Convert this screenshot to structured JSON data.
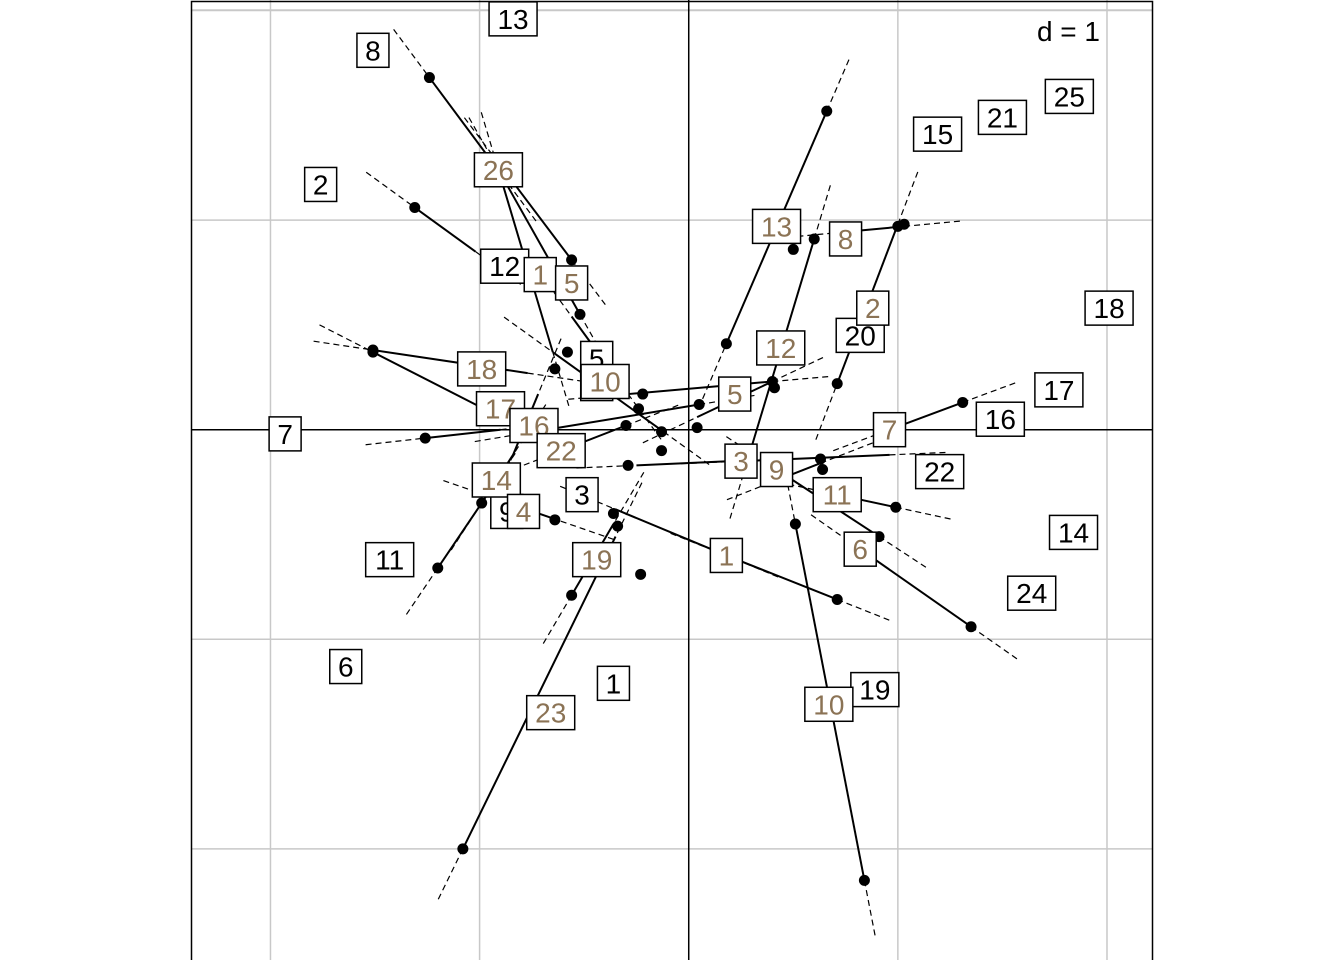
{
  "chart_data": {
    "type": "scatter",
    "title": "",
    "scale_label": "d = 1",
    "xlim": [
      -2.38,
      2.22
    ],
    "ylim": [
      -2.53,
      2.05
    ],
    "grid_step": 1,
    "grid": true,
    "colors": {
      "black_labels": "#000000",
      "brown_labels": "#8b7355",
      "grid": "#c8c8c8",
      "segments": "#000000"
    },
    "black_labels": [
      {
        "label": "13",
        "x": -0.84,
        "y": 1.96
      },
      {
        "label": "8",
        "x": -1.51,
        "y": 1.81
      },
      {
        "label": "2",
        "x": -1.76,
        "y": 1.17
      },
      {
        "label": "12",
        "x": -0.88,
        "y": 0.78
      },
      {
        "label": "5",
        "x": -0.44,
        "y": 0.34
      },
      {
        "label": "4",
        "x": -0.44,
        "y": 0.22
      },
      {
        "label": "7",
        "x": -1.93,
        "y": -0.02
      },
      {
        "label": "3",
        "x": -0.51,
        "y": -0.31
      },
      {
        "label": "9",
        "x": -0.87,
        "y": -0.39
      },
      {
        "label": "11",
        "x": -1.43,
        "y": -0.62
      },
      {
        "label": "6",
        "x": -1.64,
        "y": -1.13
      },
      {
        "label": "1",
        "x": -0.36,
        "y": -1.21
      },
      {
        "label": "15",
        "x": 1.19,
        "y": 1.41
      },
      {
        "label": "21",
        "x": 1.5,
        "y": 1.49
      },
      {
        "label": "25",
        "x": 1.82,
        "y": 1.59
      },
      {
        "label": "18",
        "x": 2.01,
        "y": 0.58
      },
      {
        "label": "20",
        "x": 0.82,
        "y": 0.45
      },
      {
        "label": "17",
        "x": 1.77,
        "y": 0.19
      },
      {
        "label": "16",
        "x": 1.49,
        "y": 0.05
      },
      {
        "label": "22",
        "x": 1.2,
        "y": -0.2
      },
      {
        "label": "14",
        "x": 1.84,
        "y": -0.49
      },
      {
        "label": "24",
        "x": 1.64,
        "y": -0.78
      },
      {
        "label": "19",
        "x": 0.89,
        "y": -1.24
      }
    ],
    "brown_labels": [
      {
        "label": "26",
        "x": -0.91,
        "y": 1.24
      },
      {
        "label": "1",
        "x": -0.71,
        "y": 0.74
      },
      {
        "label": "5",
        "x": -0.56,
        "y": 0.7
      },
      {
        "label": "10",
        "x": -0.4,
        "y": 0.23
      },
      {
        "label": "18",
        "x": -0.99,
        "y": 0.29
      },
      {
        "label": "17",
        "x": -0.9,
        "y": 0.1
      },
      {
        "label": "16",
        "x": -0.74,
        "y": 0.02
      },
      {
        "label": "22",
        "x": -0.61,
        "y": -0.1
      },
      {
        "label": "14",
        "x": -0.92,
        "y": -0.24
      },
      {
        "label": "4",
        "x": -0.79,
        "y": -0.39
      },
      {
        "label": "19",
        "x": -0.44,
        "y": -0.62
      },
      {
        "label": "23",
        "x": -0.66,
        "y": -1.35
      },
      {
        "label": "13",
        "x": 0.42,
        "y": 0.97
      },
      {
        "label": "8",
        "x": 0.75,
        "y": 0.91
      },
      {
        "label": "2",
        "x": 0.88,
        "y": 0.58
      },
      {
        "label": "12",
        "x": 0.44,
        "y": 0.39
      },
      {
        "label": "5",
        "x": 0.22,
        "y": 0.17
      },
      {
        "label": "7",
        "x": 0.96,
        "y": 0.0
      },
      {
        "label": "3",
        "x": 0.25,
        "y": -0.15
      },
      {
        "label": "9",
        "x": 0.42,
        "y": -0.19
      },
      {
        "label": "11",
        "x": 0.71,
        "y": -0.31
      },
      {
        "label": "6",
        "x": 0.82,
        "y": -0.57
      },
      {
        "label": "1",
        "x": 0.18,
        "y": -0.6
      },
      {
        "label": "10",
        "x": 0.67,
        "y": -1.31
      }
    ],
    "segments": [
      {
        "from": [
          -1.24,
          1.68
        ],
        "to": [
          -0.89,
          1.21
        ]
      },
      {
        "from": [
          -1.31,
          1.06
        ],
        "to": [
          -1.02,
          0.85
        ]
      },
      {
        "from": [
          -1.51,
          0.38
        ],
        "to": [
          -0.77,
          0.27
        ]
      },
      {
        "from": [
          -1.51,
          0.37
        ],
        "to": [
          -0.96,
          0.09
        ]
      },
      {
        "from": [
          -1.26,
          -0.04
        ],
        "to": [
          -0.9,
          0.0
        ]
      },
      {
        "from": [
          -0.9,
          1.26
        ],
        "to": [
          -0.56,
          0.81
        ]
      },
      {
        "from": [
          -0.91,
          1.24
        ],
        "to": [
          -0.52,
          0.55
        ]
      },
      {
        "from": [
          -0.91,
          1.24
        ],
        "to": [
          -0.65,
          0.37
        ]
      },
      {
        "from": [
          -0.65,
          0.37
        ],
        "to": [
          -0.12,
          -0.01
        ]
      },
      {
        "from": [
          -0.56,
          0.54
        ],
        "to": [
          -0.29,
          0.17
        ]
      },
      {
        "from": [
          -0.72,
          0.17
        ],
        "to": [
          -0.84,
          -0.12
        ]
      },
      {
        "from": [
          -0.84,
          -0.12
        ],
        "to": [
          -0.99,
          -0.35
        ]
      },
      {
        "from": [
          -0.99,
          -0.35
        ],
        "to": [
          -1.2,
          -0.66
        ]
      },
      {
        "from": [
          -0.63,
          -0.43
        ],
        "to": [
          -0.92,
          -0.33
        ]
      },
      {
        "from": [
          -0.36,
          -0.45
        ],
        "to": [
          -0.56,
          -0.79
        ]
      },
      {
        "from": [
          -0.35,
          -0.51
        ],
        "to": [
          -1.08,
          -2.0
        ]
      },
      {
        "from": [
          -0.74,
          -0.01
        ],
        "to": [
          0.05,
          0.12
        ]
      },
      {
        "from": [
          -0.61,
          -0.1
        ],
        "to": [
          -0.3,
          0.02
        ]
      },
      {
        "from": [
          -0.29,
          0.17
        ],
        "to": [
          0.4,
          0.23
        ]
      },
      {
        "from": [
          -0.25,
          -0.17
        ],
        "to": [
          0.2,
          -0.15
        ]
      },
      {
        "from": [
          -0.35,
          -0.38
        ],
        "to": [
          0.18,
          -0.6
        ]
      },
      {
        "from": [
          0.18,
          -0.6
        ],
        "to": [
          0.71,
          -0.81
        ]
      },
      {
        "from": [
          0.18,
          0.41
        ],
        "to": [
          0.66,
          1.52
        ]
      },
      {
        "from": [
          0.28,
          -0.15
        ],
        "to": [
          0.6,
          0.91
        ]
      },
      {
        "from": [
          0.71,
          0.94
        ],
        "to": [
          1.03,
          0.97
        ]
      },
      {
        "from": [
          0.71,
          0.22
        ],
        "to": [
          1.0,
          0.98
        ]
      },
      {
        "from": [
          0.04,
          0.06
        ],
        "to": [
          0.4,
          0.23
        ]
      },
      {
        "from": [
          0.25,
          -0.15
        ],
        "to": [
          0.96,
          -0.12
        ]
      },
      {
        "from": [
          0.96,
          0.0
        ],
        "to": [
          1.31,
          0.13
        ]
      },
      {
        "from": [
          0.45,
          -0.23
        ],
        "to": [
          0.63,
          -0.16
        ]
      },
      {
        "from": [
          0.42,
          -0.19
        ],
        "to": [
          0.91,
          -0.51
        ]
      },
      {
        "from": [
          0.82,
          -0.57
        ],
        "to": [
          1.35,
          -0.94
        ]
      },
      {
        "from": [
          0.71,
          -0.31
        ],
        "to": [
          0.99,
          -0.37
        ]
      },
      {
        "from": [
          0.51,
          -0.45
        ],
        "to": [
          0.84,
          -2.15
        ]
      }
    ],
    "points": [
      {
        "x": -1.24,
        "y": 1.68
      },
      {
        "x": -1.31,
        "y": 1.06
      },
      {
        "x": -0.89,
        "y": 1.21
      },
      {
        "x": -0.56,
        "y": 0.81
      },
      {
        "x": -0.52,
        "y": 0.55
      },
      {
        "x": -0.58,
        "y": 0.37
      },
      {
        "x": -1.51,
        "y": 0.38
      },
      {
        "x": -1.51,
        "y": 0.37
      },
      {
        "x": -0.64,
        "y": 0.29
      },
      {
        "x": -0.22,
        "y": 0.17
      },
      {
        "x": -0.24,
        "y": 0.1
      },
      {
        "x": -1.26,
        "y": -0.04
      },
      {
        "x": -0.3,
        "y": 0.02
      },
      {
        "x": -0.13,
        "y": -0.01
      },
      {
        "x": -0.13,
        "y": -0.1
      },
      {
        "x": -0.29,
        "y": -0.17
      },
      {
        "x": -0.99,
        "y": -0.35
      },
      {
        "x": -1.2,
        "y": -0.66
      },
      {
        "x": -0.64,
        "y": -0.43
      },
      {
        "x": -0.36,
        "y": -0.4
      },
      {
        "x": -0.34,
        "y": -0.46
      },
      {
        "x": -0.56,
        "y": -0.79
      },
      {
        "x": -0.23,
        "y": -0.69
      },
      {
        "x": -1.08,
        "y": -2.0
      },
      {
        "x": 0.05,
        "y": 0.12
      },
      {
        "x": 0.04,
        "y": 0.01
      },
      {
        "x": 0.18,
        "y": 0.41
      },
      {
        "x": 0.66,
        "y": 1.52
      },
      {
        "x": 0.5,
        "y": 0.86
      },
      {
        "x": 0.6,
        "y": 0.91
      },
      {
        "x": 1.0,
        "y": 0.97
      },
      {
        "x": 1.03,
        "y": 0.98
      },
      {
        "x": 0.71,
        "y": 0.22
      },
      {
        "x": 0.4,
        "y": 0.23
      },
      {
        "x": 0.41,
        "y": 0.2
      },
      {
        "x": 1.31,
        "y": 0.13
      },
      {
        "x": 0.63,
        "y": -0.14
      },
      {
        "x": 0.64,
        "y": -0.19
      },
      {
        "x": 0.99,
        "y": -0.37
      },
      {
        "x": 0.91,
        "y": -0.51
      },
      {
        "x": 1.35,
        "y": -0.94
      },
      {
        "x": 0.51,
        "y": -0.45
      },
      {
        "x": 0.71,
        "y": -0.81
      },
      {
        "x": 0.84,
        "y": -2.15
      }
    ]
  }
}
